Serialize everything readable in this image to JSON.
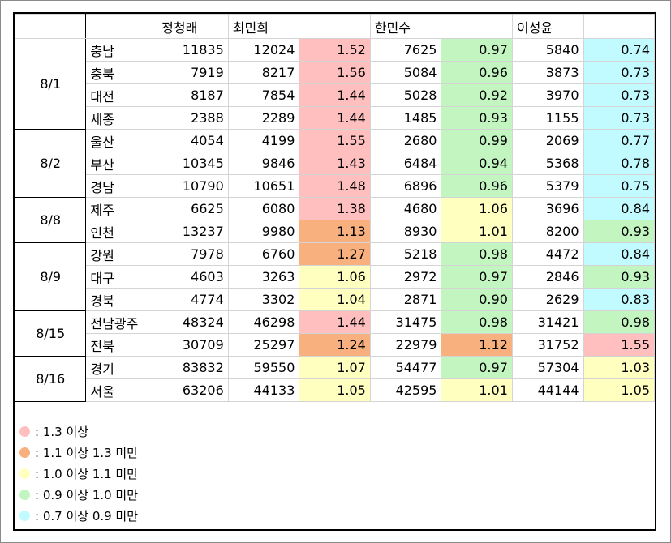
{
  "colors": {
    "red": "#ffbfbf",
    "orange": "#f8b07e",
    "yellow": "#ffffc0",
    "green": "#c2f5c0",
    "cyan": "#c2fbff"
  },
  "headers": [
    "",
    "",
    "정청래",
    "최민희",
    "",
    "한민수",
    "",
    "이성윤",
    ""
  ],
  "groups": [
    {
      "date": "8/1",
      "rows": [
        {
          "region": "충남",
          "c1": "11835",
          "c2": "12024",
          "r2": "1.52",
          "k2": "red",
          "c3": "7625",
          "r3": "0.97",
          "k3": "green",
          "c4": "5840",
          "r4": "0.74",
          "k4": "cyan"
        },
        {
          "region": "충북",
          "c1": "7919",
          "c2": "8217",
          "r2": "1.56",
          "k2": "red",
          "c3": "5084",
          "r3": "0.96",
          "k3": "green",
          "c4": "3873",
          "r4": "0.73",
          "k4": "cyan"
        },
        {
          "region": "대전",
          "c1": "8187",
          "c2": "7854",
          "r2": "1.44",
          "k2": "red",
          "c3": "5028",
          "r3": "0.92",
          "k3": "green",
          "c4": "3970",
          "r4": "0.73",
          "k4": "cyan"
        },
        {
          "region": "세종",
          "c1": "2388",
          "c2": "2289",
          "r2": "1.44",
          "k2": "red",
          "c3": "1485",
          "r3": "0.93",
          "k3": "green",
          "c4": "1155",
          "r4": "0.73",
          "k4": "cyan"
        }
      ]
    },
    {
      "date": "8/2",
      "rows": [
        {
          "region": "울산",
          "c1": "4054",
          "c2": "4199",
          "r2": "1.55",
          "k2": "red",
          "c3": "2680",
          "r3": "0.99",
          "k3": "green",
          "c4": "2069",
          "r4": "0.77",
          "k4": "cyan"
        },
        {
          "region": "부산",
          "c1": "10345",
          "c2": "9846",
          "r2": "1.43",
          "k2": "red",
          "c3": "6484",
          "r3": "0.94",
          "k3": "green",
          "c4": "5368",
          "r4": "0.78",
          "k4": "cyan"
        },
        {
          "region": "경남",
          "c1": "10790",
          "c2": "10651",
          "r2": "1.48",
          "k2": "red",
          "c3": "6896",
          "r3": "0.96",
          "k3": "green",
          "c4": "5379",
          "r4": "0.75",
          "k4": "cyan"
        }
      ]
    },
    {
      "date": "8/8",
      "rows": [
        {
          "region": "제주",
          "c1": "6625",
          "c2": "6080",
          "r2": "1.38",
          "k2": "red",
          "c3": "4680",
          "r3": "1.06",
          "k3": "yellow",
          "c4": "3696",
          "r4": "0.84",
          "k4": "cyan"
        },
        {
          "region": "인천",
          "c1": "13237",
          "c2": "9980",
          "r2": "1.13",
          "k2": "orange",
          "c3": "8930",
          "r3": "1.01",
          "k3": "yellow",
          "c4": "8200",
          "r4": "0.93",
          "k4": "green"
        }
      ]
    },
    {
      "date": "8/9",
      "rows": [
        {
          "region": "강원",
          "c1": "7978",
          "c2": "6760",
          "r2": "1.27",
          "k2": "orange",
          "c3": "5218",
          "r3": "0.98",
          "k3": "green",
          "c4": "4472",
          "r4": "0.84",
          "k4": "cyan"
        },
        {
          "region": "대구",
          "c1": "4603",
          "c2": "3263",
          "r2": "1.06",
          "k2": "yellow",
          "c3": "2972",
          "r3": "0.97",
          "k3": "green",
          "c4": "2846",
          "r4": "0.93",
          "k4": "green"
        },
        {
          "region": "경북",
          "c1": "4774",
          "c2": "3302",
          "r2": "1.04",
          "k2": "yellow",
          "c3": "2871",
          "r3": "0.90",
          "k3": "green",
          "c4": "2629",
          "r4": "0.83",
          "k4": "cyan"
        }
      ]
    },
    {
      "date": "8/15",
      "rows": [
        {
          "region": "전남광주",
          "c1": "48324",
          "c2": "46298",
          "r2": "1.44",
          "k2": "red",
          "c3": "31475",
          "r3": "0.98",
          "k3": "green",
          "c4": "31421",
          "r4": "0.98",
          "k4": "green"
        },
        {
          "region": "전북",
          "c1": "30709",
          "c2": "25297",
          "r2": "1.24",
          "k2": "orange",
          "c3": "22979",
          "r3": "1.12",
          "k3": "orange",
          "c4": "31752",
          "r4": "1.55",
          "k4": "red"
        }
      ]
    },
    {
      "date": "8/16",
      "rows": [
        {
          "region": "경기",
          "c1": "83832",
          "c2": "59550",
          "r2": "1.07",
          "k2": "yellow",
          "c3": "54477",
          "r3": "0.97",
          "k3": "green",
          "c4": "57304",
          "r4": "1.03",
          "k4": "yellow"
        },
        {
          "region": "서울",
          "c1": "63206",
          "c2": "44133",
          "r2": "1.05",
          "k2": "yellow",
          "c3": "42595",
          "r3": "1.01",
          "k3": "yellow",
          "c4": "44144",
          "r4": "1.05",
          "k4": "yellow"
        }
      ]
    }
  ],
  "legend": [
    {
      "color": "red",
      "text": ": 1.3 이상"
    },
    {
      "color": "orange",
      "text": ": 1.1 이상 1.3 미만"
    },
    {
      "color": "yellow",
      "text": ": 1.0 이상 1.1 미만"
    },
    {
      "color": "green",
      "text": ": 0.9 이상 1.0 미만"
    },
    {
      "color": "cyan",
      "text": ": 0.7 이상 0.9 미만"
    }
  ]
}
